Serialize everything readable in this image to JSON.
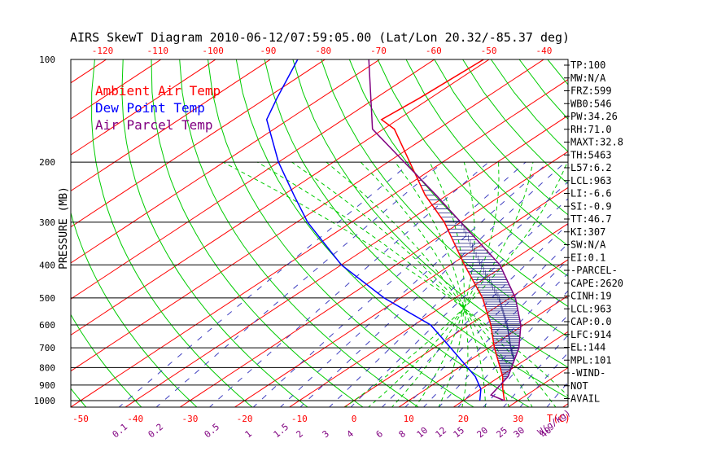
{
  "title": "AIRS SkewT Diagram 2010-06-12/07:59:05.00 (Lat/Lon 20.32/-85.37 deg)",
  "colors": {
    "ambient": "#ff0000",
    "dewpoint": "#0000ff",
    "parcel": "#800080",
    "isotherm": "#00cc00",
    "mixing": "#0000ff",
    "axis": "#000000",
    "tick_label": "#ff0000"
  },
  "chart_data": {
    "type": "line",
    "xlabel": "T(C)",
    "ylabel": "PRESSURE (MB)",
    "mixing_unit": "W(g/kg)",
    "pressure_ticks": [
      100,
      200,
      300,
      400,
      500,
      600,
      700,
      800,
      900,
      1000
    ],
    "bottom_temp_ticks": [
      -50,
      -40,
      -30,
      -20,
      -10,
      0,
      10,
      20,
      30
    ],
    "top_temp_ticks": [
      -120,
      -110,
      -100,
      -90,
      -80,
      -70,
      -60,
      -50,
      -40
    ],
    "mixing_ratio_ticks": [
      "0.1",
      "0.2",
      "0.5",
      "1",
      "1.5",
      "2",
      "3",
      "4",
      "6",
      "8",
      "10",
      "12",
      "15",
      "20",
      "25",
      "30",
      "40"
    ],
    "legend": [
      "Ambient Air Temp",
      "Dew Point Temp",
      "Air Parcel Temp"
    ],
    "series": [
      {
        "name": "Ambient Air Temp",
        "points": [
          [
            1000,
            27.5
          ],
          [
            925,
            24.0
          ],
          [
            850,
            20.5
          ],
          [
            700,
            11.0
          ],
          [
            600,
            4.0
          ],
          [
            500,
            -5.0
          ],
          [
            400,
            -17.5
          ],
          [
            300,
            -33.0
          ],
          [
            250,
            -44.0
          ],
          [
            200,
            -56.0
          ],
          [
            160,
            -68.0
          ],
          [
            150,
            -73.0
          ],
          [
            130,
            -72.0
          ],
          [
            100,
            -71.0
          ]
        ]
      },
      {
        "name": "Dew Point Temp",
        "points": [
          [
            1000,
            23.0
          ],
          [
            925,
            20.0
          ],
          [
            850,
            15.5
          ],
          [
            700,
            3.0
          ],
          [
            600,
            -7.0
          ],
          [
            500,
            -23.0
          ],
          [
            400,
            -40.0
          ],
          [
            300,
            -58.0
          ],
          [
            250,
            -68.0
          ],
          [
            200,
            -80.0
          ],
          [
            150,
            -94.0
          ],
          [
            130,
            -98.0
          ],
          [
            100,
            -105.0
          ]
        ]
      },
      {
        "name": "Air Parcel Temp",
        "points": [
          [
            1000,
            27.5
          ],
          [
            963,
            23.5
          ],
          [
            850,
            21.5
          ],
          [
            700,
            15.5
          ],
          [
            600,
            9.5
          ],
          [
            500,
            1.0
          ],
          [
            400,
            -11.0
          ],
          [
            300,
            -30.0
          ],
          [
            250,
            -42.0
          ],
          [
            200,
            -57.0
          ],
          [
            160,
            -72.0
          ],
          [
            100,
            -92.0
          ]
        ]
      }
    ]
  },
  "indices": [
    "TP:100",
    "MW:N/A",
    "FRZ:599",
    "WB0:546",
    "PW:34.26",
    "RH:71.0",
    "MAXT:32.8",
    "TH:5463",
    "L57:6.2",
    "LCL:963",
    "LI:-6.6",
    "SI:-0.9",
    "TT:46.7",
    "KI:307",
    "SW:N/A",
    "EI:0.1",
    "-PARCEL-",
    "CAPE:2620",
    "CINH:19",
    "LCL:963",
    "CAP:0.0",
    "LFC:914",
    "EL:144",
    "MPL:101",
    "-WIND-",
    "NOT",
    "AVAIL"
  ]
}
